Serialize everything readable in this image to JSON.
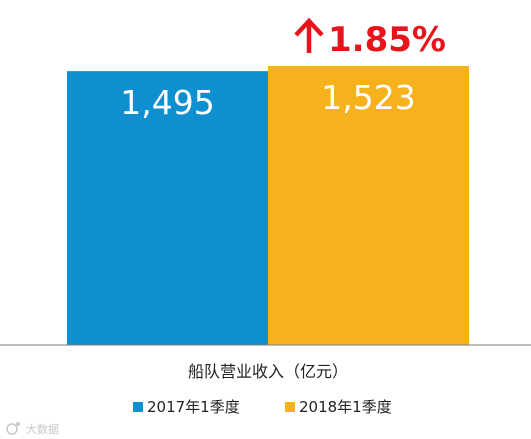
{
  "chart_data": {
    "type": "bar",
    "categories": [
      "船队营业收入（亿元）"
    ],
    "series": [
      {
        "name": "2017年1季度",
        "values": [
          1495
        ],
        "label": "1,495",
        "color": "#0e8fcf"
      },
      {
        "name": "2018年1季度",
        "values": [
          1523
        ],
        "label": "1,523",
        "color": "#f5b21d"
      }
    ],
    "annotation": "1.85%",
    "annotation_icon": "up-arrow-icon",
    "annotation_color": "#e8141b",
    "legend_position": "bottom",
    "grid": false
  },
  "watermark": "大数据"
}
